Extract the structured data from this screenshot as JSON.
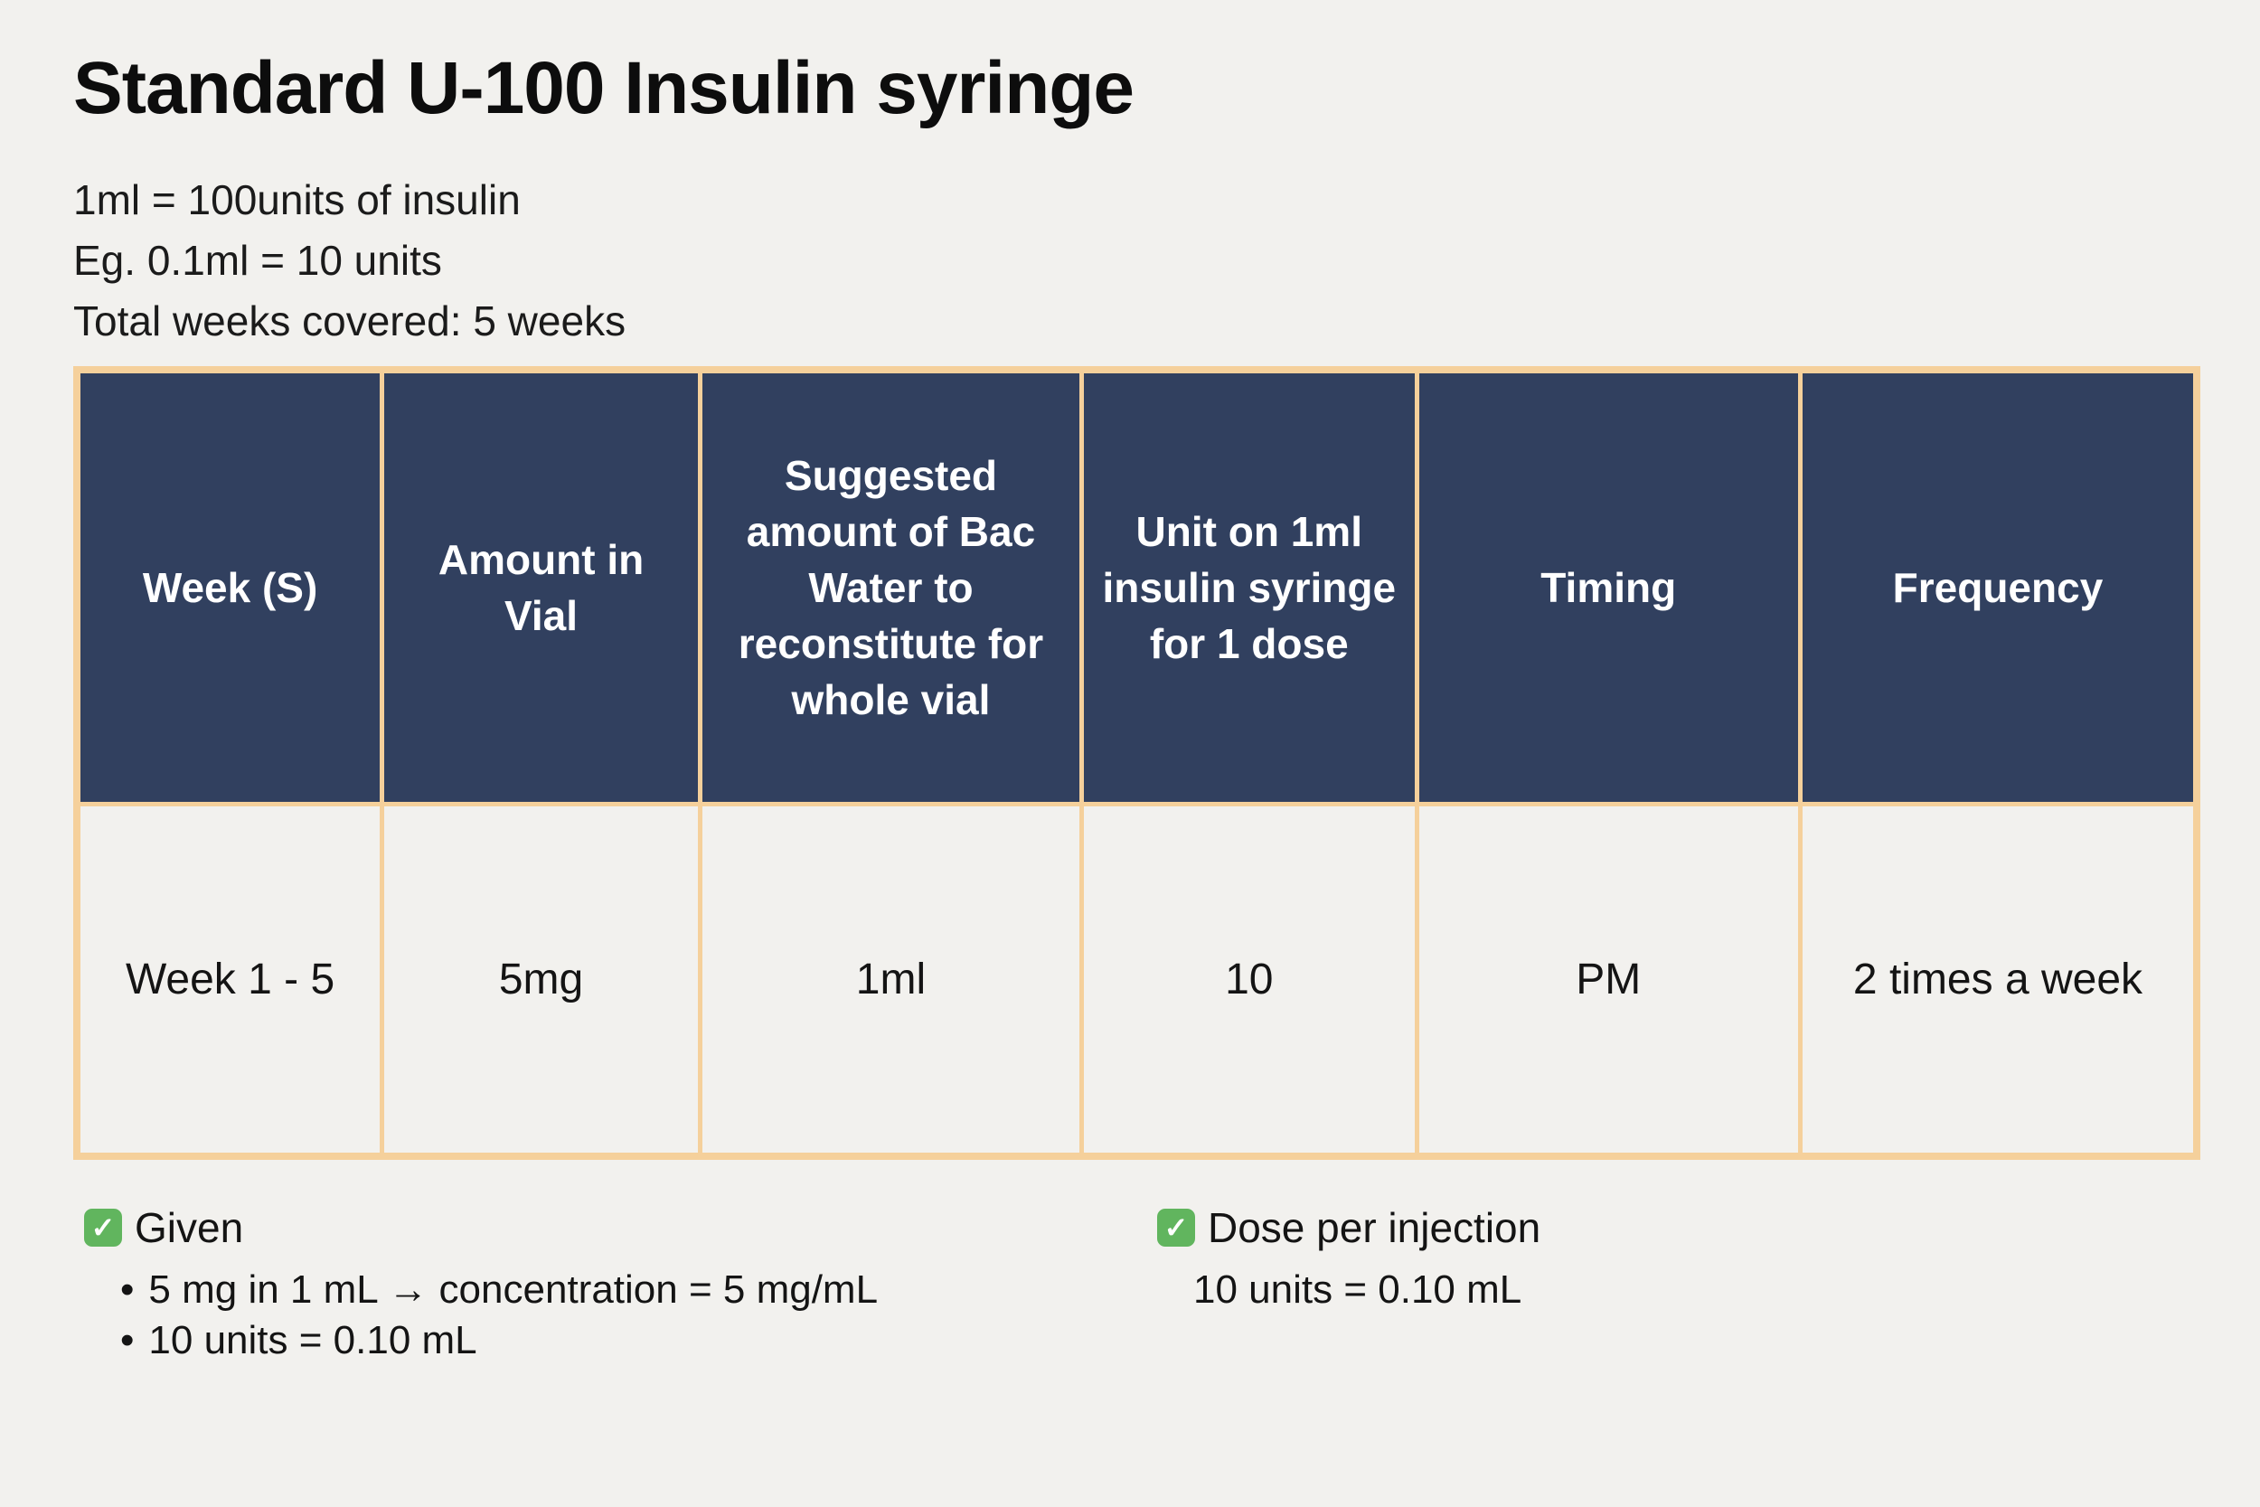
{
  "page": {
    "title": "Standard U-100 Insulin syringe",
    "subtitle_lines": [
      "1ml = 100units of insulin",
      "Eg. 0.1ml = 10 units",
      "Total weeks covered: 5 weeks"
    ]
  },
  "colors": {
    "page_background": "#f2f1ee",
    "table_header_background": "#31405f",
    "table_header_text": "#ffffff",
    "table_border": "#f5d09b",
    "check_icon_green": "#61b55e",
    "body_text": "#141414"
  },
  "table": {
    "columns": [
      "Week (S)",
      "Amount in Vial",
      "Suggested amount of Bac Water to reconstitute for whole vial",
      "Unit on 1ml insulin syringe for 1 dose",
      "Timing",
      "Frequency"
    ],
    "rows": [
      [
        "Week 1 - 5",
        "5mg",
        "1ml",
        "10",
        "PM",
        "2 times a week"
      ]
    ]
  },
  "footnotes": {
    "check_icon_char": "✓",
    "bullet_char": "•",
    "left": {
      "title": "Given",
      "bullets": [
        "5 mg in 1 mL → concentration = 5 mg/mL",
        "10 units = 0.10 mL"
      ]
    },
    "right": {
      "title": "Dose per injection",
      "note": "10 units = 0.10 mL"
    }
  }
}
